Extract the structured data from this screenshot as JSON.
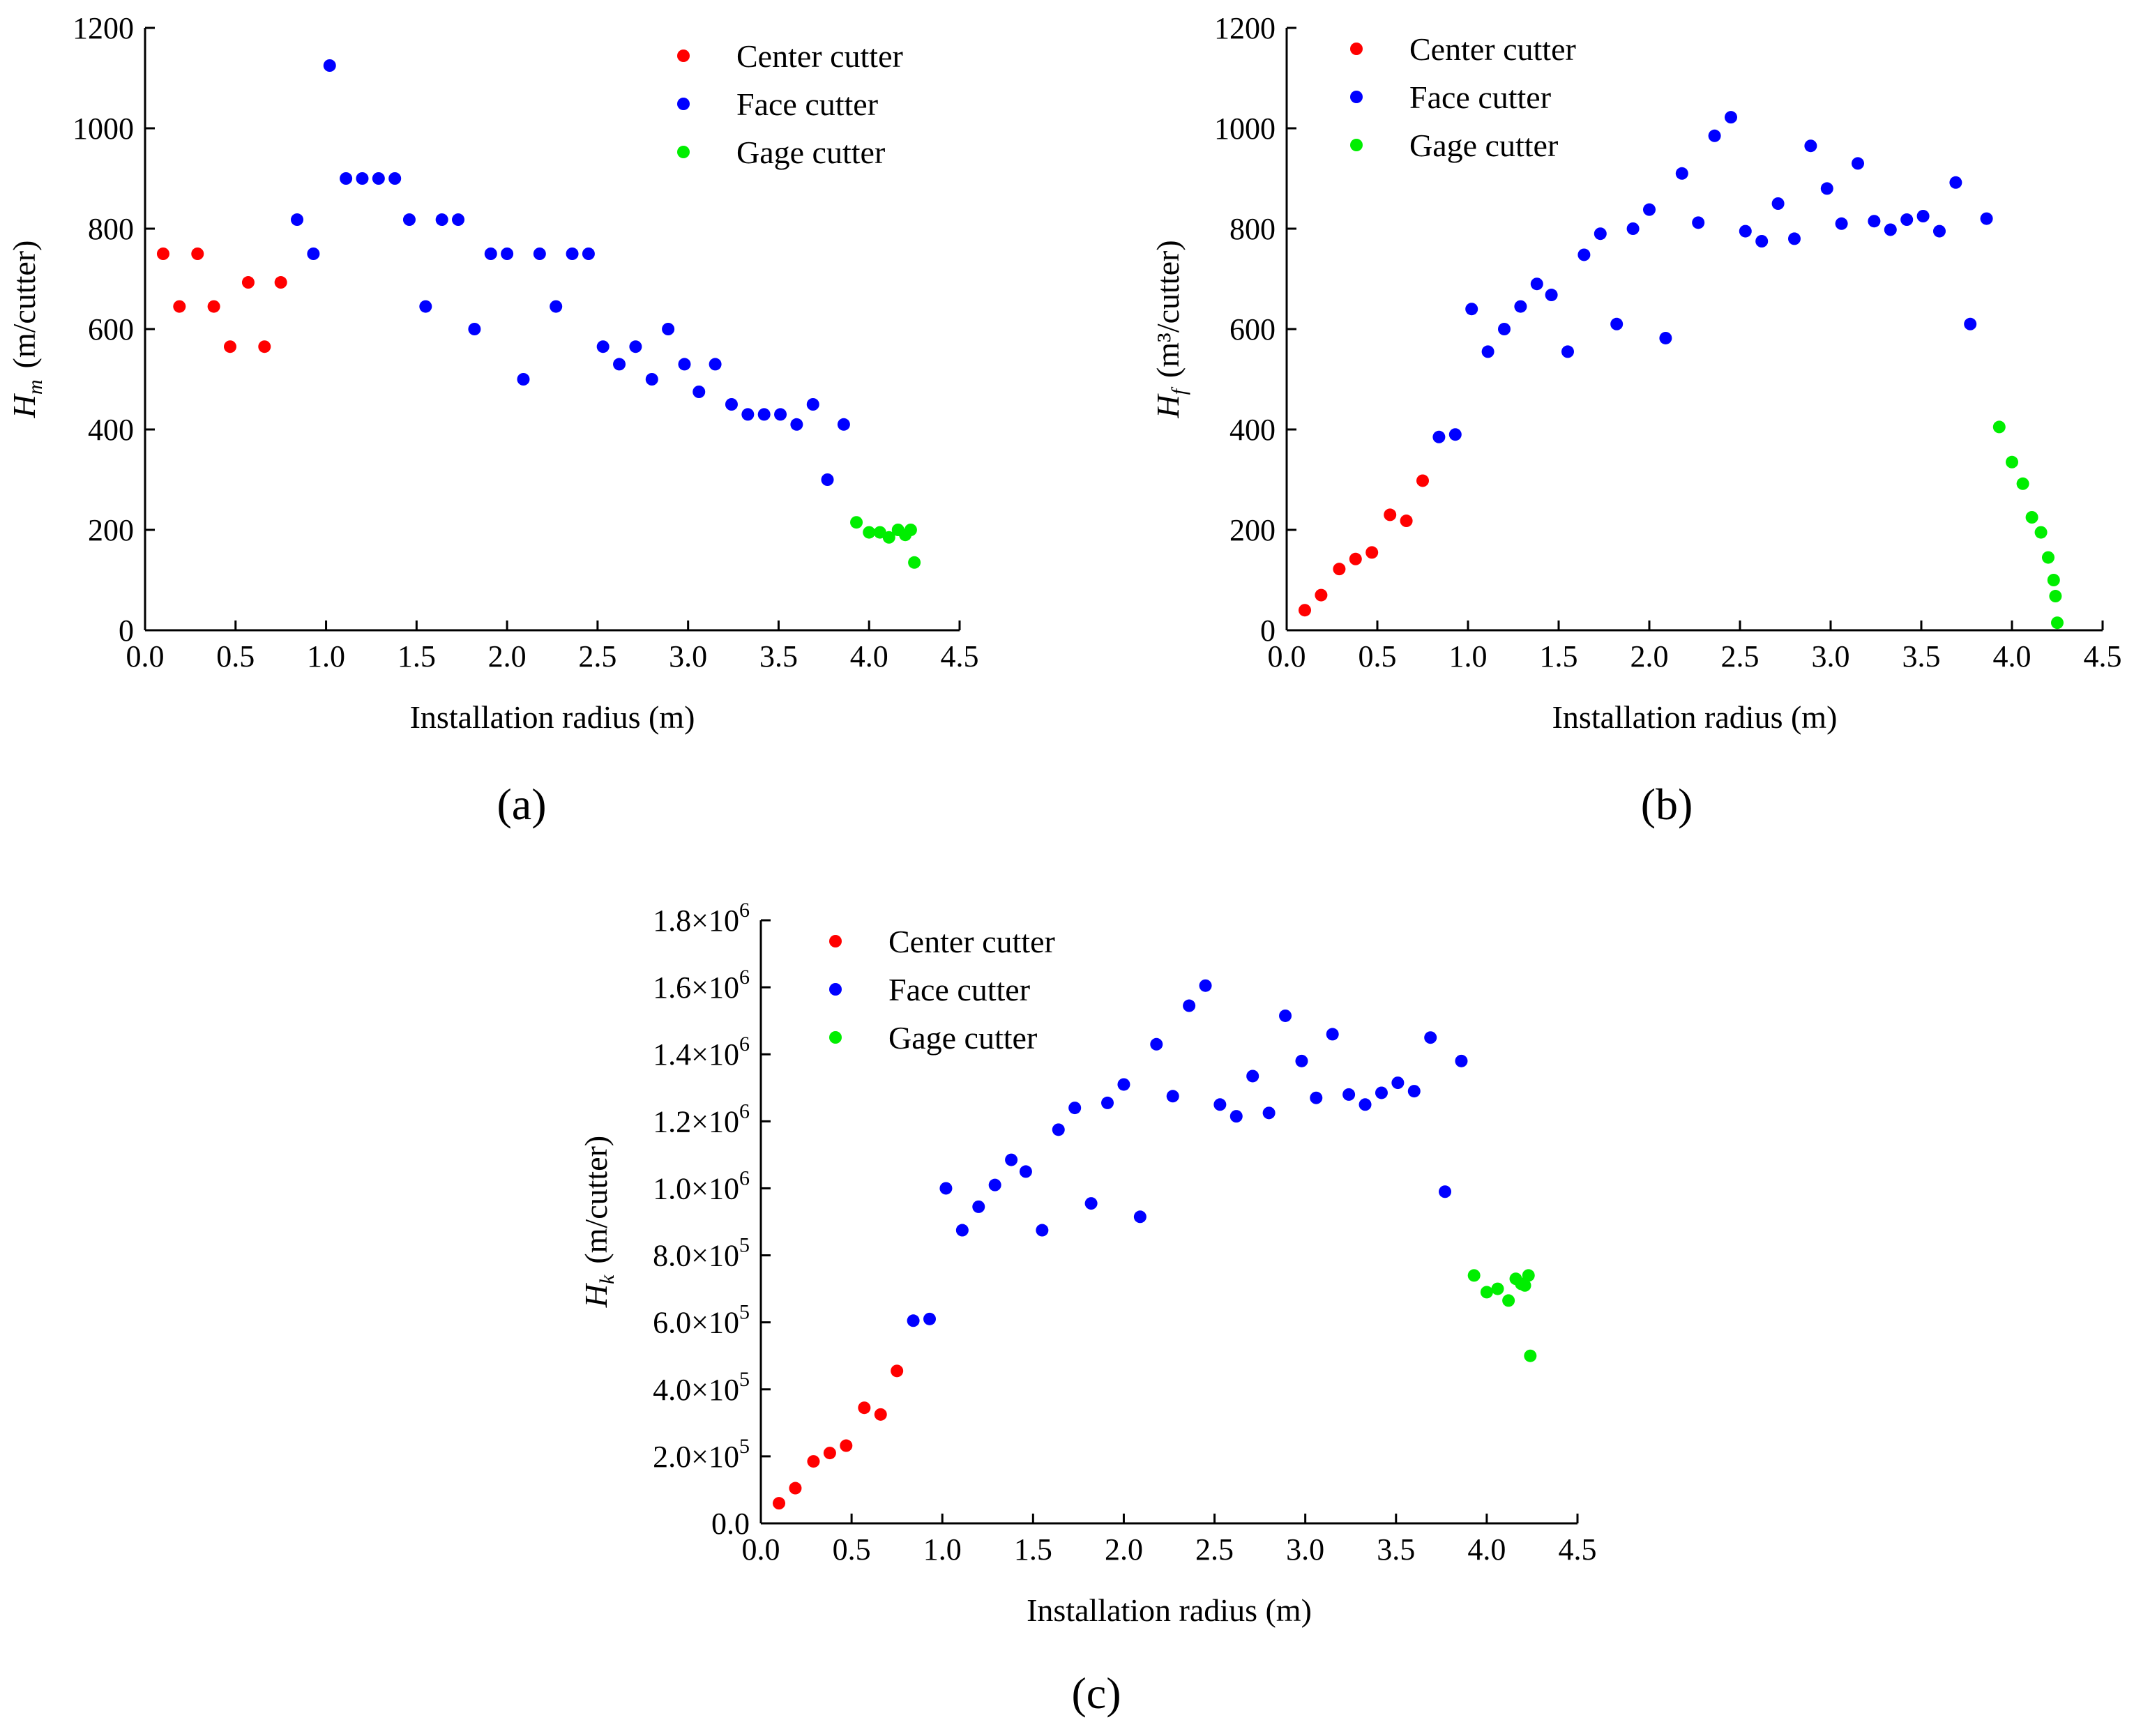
{
  "figure": {
    "panels": [
      {
        "panel_label": "(a)"
      },
      {
        "panel_label": "(b)"
      },
      {
        "panel_label": "(c)"
      }
    ]
  },
  "chart_data": [
    {
      "type": "scatter",
      "panel": "(a)",
      "title": "",
      "xlabel": "Installation radius (m)",
      "ylabel_symbol": "H",
      "ylabel_subscript": "m",
      "ylabel_unit": "(m/cutter)",
      "xlim": [
        0,
        4.5
      ],
      "ylim": [
        0,
        1200
      ],
      "xticks": [
        "0.0",
        "0.5",
        "1.0",
        "1.5",
        "2.0",
        "2.5",
        "3.0",
        "3.5",
        "4.0",
        "4.5"
      ],
      "yticks": [
        {
          "value": 0,
          "label": "0"
        },
        {
          "value": 200,
          "label": "200"
        },
        {
          "value": 400,
          "label": "400"
        },
        {
          "value": 600,
          "label": "600"
        },
        {
          "value": 800,
          "label": "800"
        },
        {
          "value": 1000,
          "label": "1000"
        },
        {
          "value": 1200,
          "label": "1200"
        }
      ],
      "legend_position": "top-right",
      "series": [
        {
          "name": "Center cutter",
          "color": "#ff0000",
          "x": [
            0.1,
            0.19,
            0.29,
            0.38,
            0.47,
            0.57,
            0.66,
            0.75
          ],
          "y": [
            750,
            645,
            750,
            645,
            565,
            693,
            565,
            693
          ]
        },
        {
          "name": "Face cutter",
          "color": "#0000ff",
          "x": [
            0.84,
            0.93,
            1.02,
            1.11,
            1.2,
            1.29,
            1.38,
            1.46,
            1.55,
            1.64,
            1.73,
            1.82,
            1.91,
            2.0,
            2.09,
            2.18,
            2.27,
            2.36,
            2.45,
            2.53,
            2.62,
            2.71,
            2.8,
            2.89,
            2.98,
            3.06,
            3.15,
            3.24,
            3.33,
            3.42,
            3.51,
            3.6,
            3.69,
            3.77,
            3.86
          ],
          "y": [
            818,
            750,
            1125,
            900,
            900,
            900,
            900,
            818,
            645,
            818,
            818,
            600,
            750,
            750,
            500,
            750,
            645,
            750,
            750,
            565,
            530,
            565,
            500,
            600,
            530,
            475,
            530,
            450,
            430,
            430,
            430,
            410,
            450,
            300,
            410
          ]
        },
        {
          "name": "Gage cutter",
          "color": "#00ee00",
          "x": [
            3.93,
            4.0,
            4.06,
            4.11,
            4.16,
            4.2,
            4.23,
            4.25
          ],
          "y": [
            215,
            195,
            195,
            185,
            200,
            190,
            200,
            135
          ]
        }
      ]
    },
    {
      "type": "scatter",
      "panel": "(b)",
      "title": "",
      "xlabel": "Installation radius (m)",
      "ylabel_symbol": "H",
      "ylabel_subscript": "f",
      "ylabel_unit": "(m³/cutter)",
      "xlim": [
        0,
        4.5
      ],
      "ylim": [
        0,
        1200
      ],
      "xticks": [
        "0.0",
        "0.5",
        "1.0",
        "1.5",
        "2.0",
        "2.5",
        "3.0",
        "3.5",
        "4.0",
        "4.5"
      ],
      "yticks": [
        {
          "value": 0,
          "label": "0"
        },
        {
          "value": 200,
          "label": "200"
        },
        {
          "value": 400,
          "label": "400"
        },
        {
          "value": 600,
          "label": "600"
        },
        {
          "value": 800,
          "label": "800"
        },
        {
          "value": 1000,
          "label": "1000"
        },
        {
          "value": 1200,
          "label": "1200"
        }
      ],
      "legend_position": "top-left",
      "series": [
        {
          "name": "Center cutter",
          "color": "#ff0000",
          "x": [
            0.1,
            0.19,
            0.29,
            0.38,
            0.47,
            0.57,
            0.66,
            0.75
          ],
          "y": [
            40,
            70,
            122,
            142,
            155,
            230,
            218,
            298
          ]
        },
        {
          "name": "Face cutter",
          "color": "#0000ff",
          "x": [
            0.84,
            0.93,
            1.02,
            1.11,
            1.2,
            1.29,
            1.38,
            1.46,
            1.55,
            1.64,
            1.73,
            1.82,
            1.91,
            2.0,
            2.09,
            2.18,
            2.27,
            2.36,
            2.45,
            2.53,
            2.62,
            2.71,
            2.8,
            2.89,
            2.98,
            3.06,
            3.15,
            3.24,
            3.33,
            3.42,
            3.51,
            3.6,
            3.69,
            3.77,
            3.86
          ],
          "y": [
            385,
            390,
            640,
            555,
            600,
            645,
            690,
            668,
            555,
            748,
            790,
            610,
            800,
            838,
            582,
            910,
            812,
            985,
            1022,
            795,
            775,
            850,
            780,
            965,
            880,
            810,
            930,
            815,
            798,
            818,
            825,
            795,
            892,
            610,
            820
          ]
        },
        {
          "name": "Gage cutter",
          "color": "#00ee00",
          "x": [
            3.93,
            4.0,
            4.06,
            4.11,
            4.16,
            4.2,
            4.23,
            4.24,
            4.25
          ],
          "y": [
            405,
            335,
            292,
            225,
            195,
            145,
            100,
            68,
            15
          ]
        }
      ]
    },
    {
      "type": "scatter",
      "panel": "(c)",
      "title": "",
      "xlabel": "Installation radius (m)",
      "ylabel_symbol": "H",
      "ylabel_subscript": "k",
      "ylabel_unit": "(m/cutter)",
      "xlim": [
        0,
        4.5
      ],
      "ylim": [
        0,
        1800000
      ],
      "xticks": [
        "0.0",
        "0.5",
        "1.0",
        "1.5",
        "2.0",
        "2.5",
        "3.0",
        "3.5",
        "4.0",
        "4.5"
      ],
      "yticks": [
        {
          "value": 0,
          "label": "0.0"
        },
        {
          "value": 200000,
          "mantissa": "2.0",
          "exp": "5"
        },
        {
          "value": 400000,
          "mantissa": "4.0",
          "exp": "5"
        },
        {
          "value": 600000,
          "mantissa": "6.0",
          "exp": "5"
        },
        {
          "value": 800000,
          "mantissa": "8.0",
          "exp": "5"
        },
        {
          "value": 1000000,
          "mantissa": "1.0",
          "exp": "6"
        },
        {
          "value": 1200000,
          "mantissa": "1.2",
          "exp": "6"
        },
        {
          "value": 1400000,
          "mantissa": "1.4",
          "exp": "6"
        },
        {
          "value": 1600000,
          "mantissa": "1.6",
          "exp": "6"
        },
        {
          "value": 1800000,
          "mantissa": "1.8",
          "exp": "6"
        }
      ],
      "ytick_times": "×10",
      "legend_position": "top-left",
      "series": [
        {
          "name": "Center cutter",
          "color": "#ff0000",
          "x": [
            0.1,
            0.19,
            0.29,
            0.38,
            0.47,
            0.57,
            0.66,
            0.75
          ],
          "y": [
            60000,
            105000,
            185000,
            210000,
            232000,
            345000,
            325000,
            455000
          ]
        },
        {
          "name": "Face cutter",
          "color": "#0000ff",
          "x": [
            0.84,
            0.93,
            1.02,
            1.11,
            1.2,
            1.29,
            1.38,
            1.46,
            1.55,
            1.64,
            1.73,
            1.82,
            1.91,
            2.0,
            2.09,
            2.18,
            2.27,
            2.36,
            2.45,
            2.53,
            2.62,
            2.71,
            2.8,
            2.89,
            2.98,
            3.06,
            3.15,
            3.24,
            3.33,
            3.42,
            3.51,
            3.6,
            3.69,
            3.77,
            3.86
          ],
          "y": [
            605000,
            610000,
            1000000,
            875000,
            945000,
            1010000,
            1085000,
            1050000,
            875000,
            1175000,
            1240000,
            955000,
            1255000,
            1310000,
            915000,
            1430000,
            1275000,
            1545000,
            1605000,
            1250000,
            1215000,
            1335000,
            1225000,
            1515000,
            1380000,
            1270000,
            1460000,
            1280000,
            1250000,
            1285000,
            1315000,
            1290000,
            1450000,
            990000,
            1380000
          ]
        },
        {
          "name": "Gage cutter",
          "color": "#00ee00",
          "x": [
            3.93,
            4.0,
            4.06,
            4.12,
            4.16,
            4.19,
            4.21,
            4.23,
            4.24
          ],
          "y": [
            740000,
            690000,
            700000,
            665000,
            730000,
            715000,
            710000,
            740000,
            500000
          ]
        }
      ]
    }
  ]
}
